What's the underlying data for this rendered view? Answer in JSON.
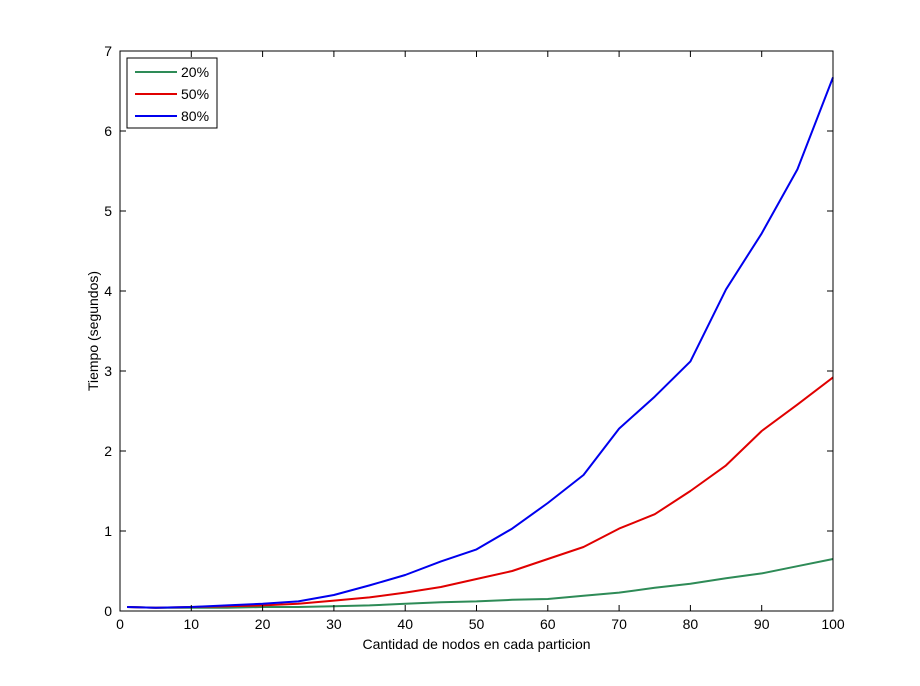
{
  "chart_data": {
    "type": "line",
    "title": "",
    "xlabel": "Cantidad de nodos en cada particion",
    "ylabel": "Tiempo (segundos)",
    "xlim": [
      0,
      100
    ],
    "ylim": [
      0,
      7
    ],
    "xticks": [
      0,
      10,
      20,
      30,
      40,
      50,
      60,
      70,
      80,
      90,
      100
    ],
    "yticks": [
      0,
      1,
      2,
      3,
      4,
      5,
      6,
      7
    ],
    "grid": false,
    "legend_position": "top-left",
    "x": [
      1,
      5,
      10,
      15,
      20,
      25,
      30,
      35,
      40,
      45,
      50,
      55,
      60,
      65,
      70,
      75,
      80,
      85,
      90,
      95,
      100
    ],
    "series": [
      {
        "name": "20%",
        "color": "#2e8b57",
        "values": [
          0.05,
          0.04,
          0.04,
          0.04,
          0.05,
          0.05,
          0.06,
          0.07,
          0.09,
          0.11,
          0.12,
          0.14,
          0.15,
          0.19,
          0.23,
          0.29,
          0.34,
          0.41,
          0.47,
          0.56,
          0.65
        ]
      },
      {
        "name": "50%",
        "color": "#e00000",
        "values": [
          0.05,
          0.04,
          0.05,
          0.06,
          0.07,
          0.09,
          0.13,
          0.17,
          0.23,
          0.3,
          0.4,
          0.5,
          0.65,
          0.8,
          1.03,
          1.21,
          1.5,
          1.82,
          2.25,
          2.58,
          2.92
        ]
      },
      {
        "name": "80%",
        "color": "#0000ee",
        "values": [
          0.05,
          0.04,
          0.05,
          0.07,
          0.09,
          0.12,
          0.2,
          0.32,
          0.45,
          0.62,
          0.77,
          1.03,
          1.35,
          1.7,
          2.28,
          2.68,
          3.12,
          4.02,
          4.72,
          5.52,
          6.67
        ]
      }
    ]
  }
}
